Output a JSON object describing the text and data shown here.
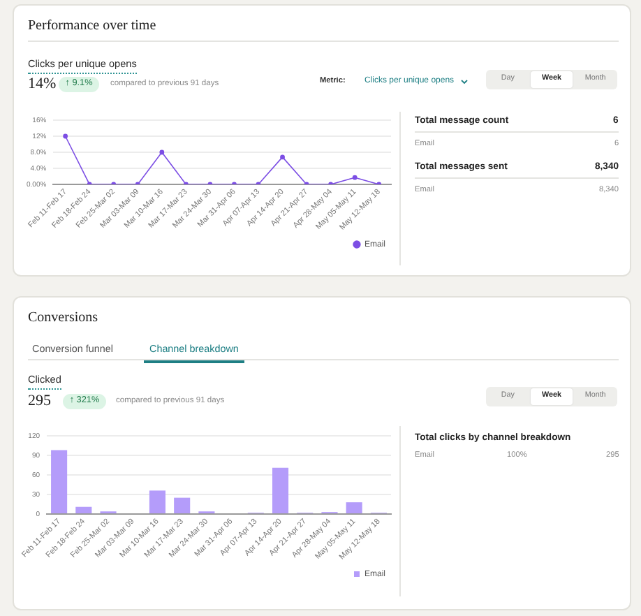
{
  "chart_data": [
    {
      "type": "line",
      "title": "Performance over time",
      "subtitle": "Clicks per unique opens",
      "annotations": [
        "14%",
        "↑ 9.1%",
        "compared to previous 91 days",
        "Metric:",
        "Clicks per unique opens",
        "Day",
        "Week",
        "Month"
      ],
      "categories": [
        "Feb 11-Feb 17",
        "Feb 18-Feb 24",
        "Feb 25-Mar 02",
        "Mar 03-Mar 09",
        "Mar 10-Mar 16",
        "Mar 17-Mar 23",
        "Mar 24-Mar 30",
        "Mar 31-Apr 06",
        "Apr 07-Apr 13",
        "Apr 14-Apr 20",
        "Apr 21-Apr 27",
        "Apr 28-May 04",
        "May 05-May 11",
        "May 12-May 18"
      ],
      "series": [
        {
          "name": "Email",
          "color": "#7c4ee4",
          "values": [
            12,
            0,
            0,
            0,
            8,
            0,
            0,
            0,
            0,
            6.8,
            0,
            0,
            1.7,
            0
          ]
        }
      ],
      "ylim": [
        0,
        16
      ],
      "yticks": [
        {
          "value": 0,
          "label": "0.00%"
        },
        {
          "value": 4,
          "label": "4.0%"
        },
        {
          "value": 8,
          "label": "8.0%"
        },
        {
          "value": 12,
          "label": "12%"
        },
        {
          "value": 16,
          "label": "16%"
        }
      ],
      "grid": "y",
      "legend": "bottom right",
      "marker": "circle"
    },
    {
      "type": "other",
      "annotations": [
        "Total message count",
        "6",
        "Email",
        "6",
        "Total messages sent",
        "8,340",
        "Email",
        "8,340"
      ]
    },
    {
      "type": "bar",
      "title": "Conversions",
      "subtitle": "Clicked",
      "annotations": [
        "Conversion funnel",
        "Channel breakdown",
        "295",
        "↑ 321%",
        "compared to previous 91 days",
        "Day",
        "Week",
        "Month"
      ],
      "categories": [
        "Feb 11-Feb 17",
        "Feb 18-Feb 24",
        "Feb 25-Mar 02",
        "Mar 03-Mar 09",
        "Mar 10-Mar 16",
        "Mar 17-Mar 23",
        "Mar 24-Mar 30",
        "Mar 31-Apr 06",
        "Apr 07-Apr 13",
        "Apr 14-Apr 20",
        "Apr 21-Apr 27",
        "Apr 28-May 04",
        "May 05-May 11",
        "May 12-May 18"
      ],
      "series": [
        {
          "name": "Email",
          "color": "#b49cfa",
          "values": [
            98,
            11,
            4,
            0,
            36,
            25,
            4,
            0,
            2,
            71,
            2,
            3,
            18,
            2
          ]
        }
      ],
      "ylim": [
        0,
        120
      ],
      "yticks": [
        0,
        30,
        60,
        90,
        120
      ],
      "grid": "y",
      "legend": "bottom right"
    },
    {
      "type": "other",
      "annotations": [
        "Total clicks by channel breakdown",
        "Email",
        "100%",
        "295"
      ]
    }
  ]
}
